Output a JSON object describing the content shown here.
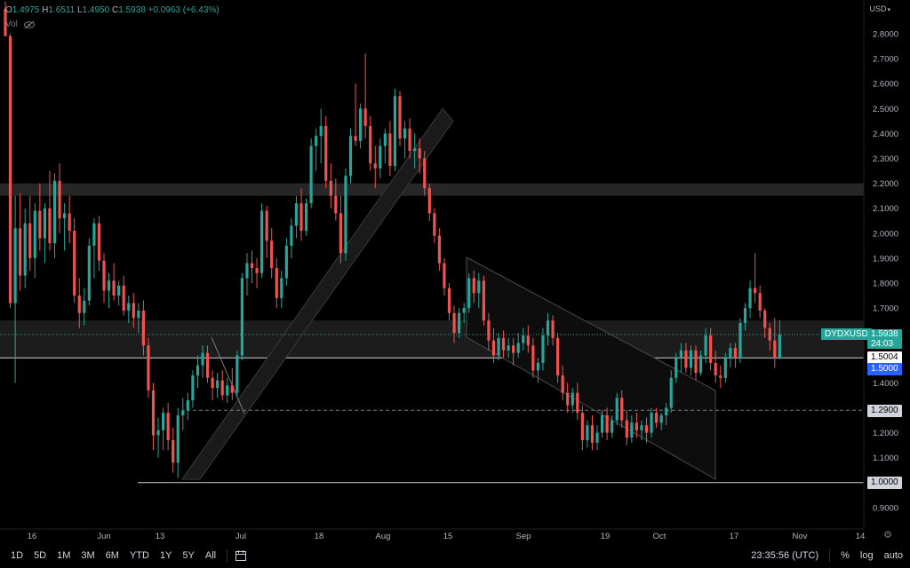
{
  "header": {
    "o_label": "O",
    "o_value": "1.4975",
    "h_label": "H",
    "h_value": "1.6511",
    "l_label": "L",
    "l_value": "1.4950",
    "c_label": "C",
    "c_value": "1.5938",
    "change": "+0.0963 (+6.43%)",
    "vol_label": "Vol"
  },
  "axis": {
    "currency": "USD"
  },
  "price_tags": {
    "symbol": "DYDXUSD",
    "last": "1.5938",
    "countdown": "24:03",
    "level_a": "1.5004",
    "level_b": "1.5000",
    "level_c": "1.2900",
    "level_d": "1.0000"
  },
  "toolbar": {
    "timeframes": [
      "1D",
      "5D",
      "1M",
      "3M",
      "6M",
      "YTD",
      "1Y",
      "5Y",
      "All"
    ],
    "time": "23:35:56 (UTC)",
    "percent": "%",
    "log": "log",
    "auto": "auto"
  },
  "colors": {
    "up": "#26a69a",
    "down": "#ef5350",
    "background": "#000000",
    "blue_tag": "#2962ff"
  },
  "chart_data": {
    "type": "candlestick",
    "symbol": "DYDXUSD",
    "y_ticks": [
      2.8,
      2.7,
      2.6,
      2.5,
      2.4,
      2.3,
      2.2,
      2.1,
      2.0,
      1.9,
      1.8,
      1.7,
      1.6,
      1.5,
      1.4,
      1.3,
      1.2,
      1.1,
      1.0,
      0.9
    ],
    "y_tick_labels": [
      "2.8000",
      "2.7000",
      "2.6000",
      "2.5000",
      "2.4000",
      "2.3000",
      "2.2000",
      "2.1000",
      "2.0000",
      "1.9000",
      "1.8000",
      "1.7000",
      "1.6000",
      "1.5000",
      "1.4000",
      "1.3000",
      "1.2000",
      "1.1000",
      "1.0000",
      "0.9000"
    ],
    "ylim": [
      0.82,
      2.93
    ],
    "x_ticks": [
      "16",
      "Jun",
      "13",
      "Jul",
      "18",
      "Aug",
      "15",
      "Sep",
      "19",
      "Oct",
      "17",
      "Nov",
      "14"
    ],
    "candles": [
      {
        "o": 2.9,
        "h": 2.93,
        "l": 2.79,
        "c": 2.79
      },
      {
        "o": 2.79,
        "h": 2.8,
        "l": 1.7,
        "c": 1.72
      },
      {
        "o": 1.72,
        "h": 2.15,
        "l": 1.4,
        "c": 2.02
      },
      {
        "o": 2.02,
        "h": 2.16,
        "l": 1.77,
        "c": 1.83
      },
      {
        "o": 1.83,
        "h": 2.1,
        "l": 1.78,
        "c": 2.04
      },
      {
        "o": 2.04,
        "h": 2.15,
        "l": 1.85,
        "c": 1.9
      },
      {
        "o": 1.9,
        "h": 2.12,
        "l": 1.82,
        "c": 2.09
      },
      {
        "o": 2.09,
        "h": 2.2,
        "l": 1.93,
        "c": 1.98
      },
      {
        "o": 1.98,
        "h": 2.12,
        "l": 1.88,
        "c": 2.1
      },
      {
        "o": 2.1,
        "h": 2.25,
        "l": 1.93,
        "c": 1.96
      },
      {
        "o": 1.96,
        "h": 2.24,
        "l": 1.9,
        "c": 2.21
      },
      {
        "o": 2.21,
        "h": 2.28,
        "l": 2.0,
        "c": 2.06
      },
      {
        "o": 2.06,
        "h": 2.12,
        "l": 1.93,
        "c": 2.08
      },
      {
        "o": 2.08,
        "h": 2.15,
        "l": 1.96,
        "c": 2.01
      },
      {
        "o": 2.01,
        "h": 2.06,
        "l": 1.72,
        "c": 1.75
      },
      {
        "o": 1.75,
        "h": 1.82,
        "l": 1.62,
        "c": 1.68
      },
      {
        "o": 1.68,
        "h": 1.78,
        "l": 1.63,
        "c": 1.73
      },
      {
        "o": 1.73,
        "h": 1.98,
        "l": 1.71,
        "c": 1.95
      },
      {
        "o": 1.95,
        "h": 2.06,
        "l": 1.82,
        "c": 2.04
      },
      {
        "o": 2.04,
        "h": 2.07,
        "l": 1.85,
        "c": 1.89
      },
      {
        "o": 1.89,
        "h": 1.92,
        "l": 1.72,
        "c": 1.77
      },
      {
        "o": 1.77,
        "h": 1.84,
        "l": 1.7,
        "c": 1.81
      },
      {
        "o": 1.81,
        "h": 1.88,
        "l": 1.73,
        "c": 1.75
      },
      {
        "o": 1.75,
        "h": 1.81,
        "l": 1.71,
        "c": 1.79
      },
      {
        "o": 1.79,
        "h": 1.83,
        "l": 1.67,
        "c": 1.69
      },
      {
        "o": 1.69,
        "h": 1.75,
        "l": 1.64,
        "c": 1.72
      },
      {
        "o": 1.72,
        "h": 1.76,
        "l": 1.62,
        "c": 1.66
      },
      {
        "o": 1.66,
        "h": 1.72,
        "l": 1.6,
        "c": 1.69
      },
      {
        "o": 1.69,
        "h": 1.73,
        "l": 1.51,
        "c": 1.55
      },
      {
        "o": 1.55,
        "h": 1.58,
        "l": 1.34,
        "c": 1.37
      },
      {
        "o": 1.37,
        "h": 1.4,
        "l": 1.13,
        "c": 1.19
      },
      {
        "o": 1.19,
        "h": 1.26,
        "l": 1.1,
        "c": 1.21
      },
      {
        "o": 1.21,
        "h": 1.3,
        "l": 1.13,
        "c": 1.28
      },
      {
        "o": 1.28,
        "h": 1.32,
        "l": 1.13,
        "c": 1.17
      },
      {
        "o": 1.17,
        "h": 1.22,
        "l": 1.04,
        "c": 1.08
      },
      {
        "o": 1.08,
        "h": 1.3,
        "l": 1.02,
        "c": 1.27
      },
      {
        "o": 1.27,
        "h": 1.34,
        "l": 1.21,
        "c": 1.29
      },
      {
        "o": 1.29,
        "h": 1.36,
        "l": 1.25,
        "c": 1.33
      },
      {
        "o": 1.33,
        "h": 1.45,
        "l": 1.3,
        "c": 1.43
      },
      {
        "o": 1.43,
        "h": 1.51,
        "l": 1.38,
        "c": 1.47
      },
      {
        "o": 1.47,
        "h": 1.55,
        "l": 1.42,
        "c": 1.52
      },
      {
        "o": 1.52,
        "h": 1.55,
        "l": 1.4,
        "c": 1.42
      },
      {
        "o": 1.42,
        "h": 1.45,
        "l": 1.33,
        "c": 1.38
      },
      {
        "o": 1.38,
        "h": 1.44,
        "l": 1.34,
        "c": 1.41
      },
      {
        "o": 1.41,
        "h": 1.45,
        "l": 1.33,
        "c": 1.35
      },
      {
        "o": 1.35,
        "h": 1.42,
        "l": 1.32,
        "c": 1.39
      },
      {
        "o": 1.39,
        "h": 1.46,
        "l": 1.33,
        "c": 1.36
      },
      {
        "o": 1.36,
        "h": 1.53,
        "l": 1.34,
        "c": 1.51
      },
      {
        "o": 1.51,
        "h": 1.84,
        "l": 1.49,
        "c": 1.82
      },
      {
        "o": 1.82,
        "h": 1.92,
        "l": 1.75,
        "c": 1.88
      },
      {
        "o": 1.88,
        "h": 1.93,
        "l": 1.8,
        "c": 1.86
      },
      {
        "o": 1.86,
        "h": 1.9,
        "l": 1.78,
        "c": 1.84
      },
      {
        "o": 1.84,
        "h": 2.12,
        "l": 1.82,
        "c": 2.09
      },
      {
        "o": 2.09,
        "h": 2.11,
        "l": 1.9,
        "c": 1.97
      },
      {
        "o": 1.97,
        "h": 2.02,
        "l": 1.82,
        "c": 1.86
      },
      {
        "o": 1.86,
        "h": 1.9,
        "l": 1.7,
        "c": 1.74
      },
      {
        "o": 1.74,
        "h": 1.85,
        "l": 1.7,
        "c": 1.82
      },
      {
        "o": 1.82,
        "h": 1.98,
        "l": 1.79,
        "c": 1.95
      },
      {
        "o": 1.95,
        "h": 2.06,
        "l": 1.9,
        "c": 2.03
      },
      {
        "o": 2.03,
        "h": 2.15,
        "l": 1.98,
        "c": 2.12
      },
      {
        "o": 2.12,
        "h": 2.18,
        "l": 1.97,
        "c": 2.01
      },
      {
        "o": 2.01,
        "h": 2.14,
        "l": 1.99,
        "c": 2.12
      },
      {
        "o": 2.12,
        "h": 2.38,
        "l": 2.1,
        "c": 2.35
      },
      {
        "o": 2.35,
        "h": 2.42,
        "l": 2.25,
        "c": 2.39
      },
      {
        "o": 2.39,
        "h": 2.5,
        "l": 2.28,
        "c": 2.43
      },
      {
        "o": 2.43,
        "h": 2.47,
        "l": 2.18,
        "c": 2.21
      },
      {
        "o": 2.21,
        "h": 2.28,
        "l": 2.1,
        "c": 2.15
      },
      {
        "o": 2.15,
        "h": 2.22,
        "l": 2.05,
        "c": 2.08
      },
      {
        "o": 2.08,
        "h": 2.15,
        "l": 1.88,
        "c": 1.92
      },
      {
        "o": 1.92,
        "h": 2.26,
        "l": 1.89,
        "c": 2.23
      },
      {
        "o": 2.23,
        "h": 2.42,
        "l": 2.2,
        "c": 2.39
      },
      {
        "o": 2.39,
        "h": 2.6,
        "l": 2.35,
        "c": 2.37
      },
      {
        "o": 2.37,
        "h": 2.52,
        "l": 2.34,
        "c": 2.5
      },
      {
        "o": 2.5,
        "h": 2.72,
        "l": 2.38,
        "c": 2.43
      },
      {
        "o": 2.43,
        "h": 2.47,
        "l": 2.25,
        "c": 2.28
      },
      {
        "o": 2.28,
        "h": 2.35,
        "l": 2.18,
        "c": 2.26
      },
      {
        "o": 2.26,
        "h": 2.38,
        "l": 2.22,
        "c": 2.35
      },
      {
        "o": 2.35,
        "h": 2.42,
        "l": 2.28,
        "c": 2.4
      },
      {
        "o": 2.4,
        "h": 2.45,
        "l": 2.23,
        "c": 2.27
      },
      {
        "o": 2.27,
        "h": 2.58,
        "l": 2.25,
        "c": 2.55
      },
      {
        "o": 2.55,
        "h": 2.57,
        "l": 2.35,
        "c": 2.38
      },
      {
        "o": 2.38,
        "h": 2.45,
        "l": 2.3,
        "c": 2.42
      },
      {
        "o": 2.42,
        "h": 2.46,
        "l": 2.3,
        "c": 2.33
      },
      {
        "o": 2.33,
        "h": 2.4,
        "l": 2.26,
        "c": 2.34
      },
      {
        "o": 2.34,
        "h": 2.38,
        "l": 2.24,
        "c": 2.3
      },
      {
        "o": 2.3,
        "h": 2.33,
        "l": 2.15,
        "c": 2.18
      },
      {
        "o": 2.18,
        "h": 2.2,
        "l": 2.05,
        "c": 2.08
      },
      {
        "o": 2.08,
        "h": 2.1,
        "l": 1.96,
        "c": 1.99
      },
      {
        "o": 1.99,
        "h": 2.02,
        "l": 1.85,
        "c": 1.88
      },
      {
        "o": 1.88,
        "h": 1.9,
        "l": 1.75,
        "c": 1.78
      },
      {
        "o": 1.78,
        "h": 1.8,
        "l": 1.65,
        "c": 1.68
      },
      {
        "o": 1.68,
        "h": 1.71,
        "l": 1.56,
        "c": 1.6
      },
      {
        "o": 1.6,
        "h": 1.7,
        "l": 1.58,
        "c": 1.68
      },
      {
        "o": 1.68,
        "h": 1.72,
        "l": 1.64,
        "c": 1.7
      },
      {
        "o": 1.7,
        "h": 1.84,
        "l": 1.68,
        "c": 1.82
      },
      {
        "o": 1.82,
        "h": 1.85,
        "l": 1.72,
        "c": 1.76
      },
      {
        "o": 1.76,
        "h": 1.84,
        "l": 1.7,
        "c": 1.81
      },
      {
        "o": 1.81,
        "h": 1.83,
        "l": 1.63,
        "c": 1.65
      },
      {
        "o": 1.65,
        "h": 1.68,
        "l": 1.53,
        "c": 1.57
      },
      {
        "o": 1.57,
        "h": 1.62,
        "l": 1.48,
        "c": 1.51
      },
      {
        "o": 1.51,
        "h": 1.6,
        "l": 1.49,
        "c": 1.58
      },
      {
        "o": 1.58,
        "h": 1.61,
        "l": 1.5,
        "c": 1.53
      },
      {
        "o": 1.53,
        "h": 1.58,
        "l": 1.5,
        "c": 1.55
      },
      {
        "o": 1.55,
        "h": 1.58,
        "l": 1.47,
        "c": 1.52
      },
      {
        "o": 1.52,
        "h": 1.6,
        "l": 1.5,
        "c": 1.56
      },
      {
        "o": 1.56,
        "h": 1.62,
        "l": 1.53,
        "c": 1.59
      },
      {
        "o": 1.59,
        "h": 1.63,
        "l": 1.52,
        "c": 1.55
      },
      {
        "o": 1.55,
        "h": 1.58,
        "l": 1.42,
        "c": 1.45
      },
      {
        "o": 1.45,
        "h": 1.5,
        "l": 1.4,
        "c": 1.48
      },
      {
        "o": 1.48,
        "h": 1.62,
        "l": 1.45,
        "c": 1.59
      },
      {
        "o": 1.59,
        "h": 1.68,
        "l": 1.55,
        "c": 1.65
      },
      {
        "o": 1.65,
        "h": 1.67,
        "l": 1.55,
        "c": 1.58
      },
      {
        "o": 1.58,
        "h": 1.6,
        "l": 1.4,
        "c": 1.43
      },
      {
        "o": 1.43,
        "h": 1.47,
        "l": 1.33,
        "c": 1.36
      },
      {
        "o": 1.36,
        "h": 1.4,
        "l": 1.28,
        "c": 1.31
      },
      {
        "o": 1.31,
        "h": 1.38,
        "l": 1.28,
        "c": 1.36
      },
      {
        "o": 1.36,
        "h": 1.4,
        "l": 1.25,
        "c": 1.28
      },
      {
        "o": 1.28,
        "h": 1.31,
        "l": 1.13,
        "c": 1.17
      },
      {
        "o": 1.17,
        "h": 1.25,
        "l": 1.14,
        "c": 1.23
      },
      {
        "o": 1.23,
        "h": 1.27,
        "l": 1.13,
        "c": 1.16
      },
      {
        "o": 1.16,
        "h": 1.23,
        "l": 1.13,
        "c": 1.2
      },
      {
        "o": 1.2,
        "h": 1.29,
        "l": 1.18,
        "c": 1.27
      },
      {
        "o": 1.27,
        "h": 1.3,
        "l": 1.17,
        "c": 1.2
      },
      {
        "o": 1.2,
        "h": 1.27,
        "l": 1.18,
        "c": 1.25
      },
      {
        "o": 1.25,
        "h": 1.36,
        "l": 1.23,
        "c": 1.34
      },
      {
        "o": 1.34,
        "h": 1.37,
        "l": 1.22,
        "c": 1.25
      },
      {
        "o": 1.25,
        "h": 1.29,
        "l": 1.15,
        "c": 1.18
      },
      {
        "o": 1.18,
        "h": 1.27,
        "l": 1.16,
        "c": 1.24
      },
      {
        "o": 1.24,
        "h": 1.28,
        "l": 1.18,
        "c": 1.21
      },
      {
        "o": 1.21,
        "h": 1.25,
        "l": 1.17,
        "c": 1.23
      },
      {
        "o": 1.23,
        "h": 1.26,
        "l": 1.16,
        "c": 1.2
      },
      {
        "o": 1.2,
        "h": 1.3,
        "l": 1.18,
        "c": 1.28
      },
      {
        "o": 1.28,
        "h": 1.3,
        "l": 1.22,
        "c": 1.24
      },
      {
        "o": 1.24,
        "h": 1.28,
        "l": 1.21,
        "c": 1.27
      },
      {
        "o": 1.27,
        "h": 1.32,
        "l": 1.23,
        "c": 1.3
      },
      {
        "o": 1.3,
        "h": 1.45,
        "l": 1.28,
        "c": 1.42
      },
      {
        "o": 1.42,
        "h": 1.52,
        "l": 1.4,
        "c": 1.5
      },
      {
        "o": 1.5,
        "h": 1.56,
        "l": 1.44,
        "c": 1.53
      },
      {
        "o": 1.53,
        "h": 1.56,
        "l": 1.44,
        "c": 1.46
      },
      {
        "o": 1.46,
        "h": 1.55,
        "l": 1.43,
        "c": 1.53
      },
      {
        "o": 1.53,
        "h": 1.55,
        "l": 1.41,
        "c": 1.44
      },
      {
        "o": 1.44,
        "h": 1.53,
        "l": 1.43,
        "c": 1.51
      },
      {
        "o": 1.51,
        "h": 1.62,
        "l": 1.48,
        "c": 1.59
      },
      {
        "o": 1.59,
        "h": 1.62,
        "l": 1.45,
        "c": 1.48
      },
      {
        "o": 1.48,
        "h": 1.53,
        "l": 1.4,
        "c": 1.43
      },
      {
        "o": 1.43,
        "h": 1.47,
        "l": 1.38,
        "c": 1.42
      },
      {
        "o": 1.42,
        "h": 1.52,
        "l": 1.4,
        "c": 1.5
      },
      {
        "o": 1.5,
        "h": 1.56,
        "l": 1.46,
        "c": 1.54
      },
      {
        "o": 1.54,
        "h": 1.56,
        "l": 1.46,
        "c": 1.5
      },
      {
        "o": 1.5,
        "h": 1.66,
        "l": 1.48,
        "c": 1.64
      },
      {
        "o": 1.64,
        "h": 1.72,
        "l": 1.61,
        "c": 1.7
      },
      {
        "o": 1.7,
        "h": 1.81,
        "l": 1.66,
        "c": 1.78
      },
      {
        "o": 1.78,
        "h": 1.92,
        "l": 1.72,
        "c": 1.76
      },
      {
        "o": 1.76,
        "h": 1.79,
        "l": 1.66,
        "c": 1.69
      },
      {
        "o": 1.69,
        "h": 1.7,
        "l": 1.58,
        "c": 1.62
      },
      {
        "o": 1.62,
        "h": 1.64,
        "l": 1.53,
        "c": 1.57
      },
      {
        "o": 1.57,
        "h": 1.66,
        "l": 1.46,
        "c": 1.5
      },
      {
        "o": 1.4975,
        "h": 1.6511,
        "l": 1.495,
        "c": 1.5938
      }
    ]
  }
}
